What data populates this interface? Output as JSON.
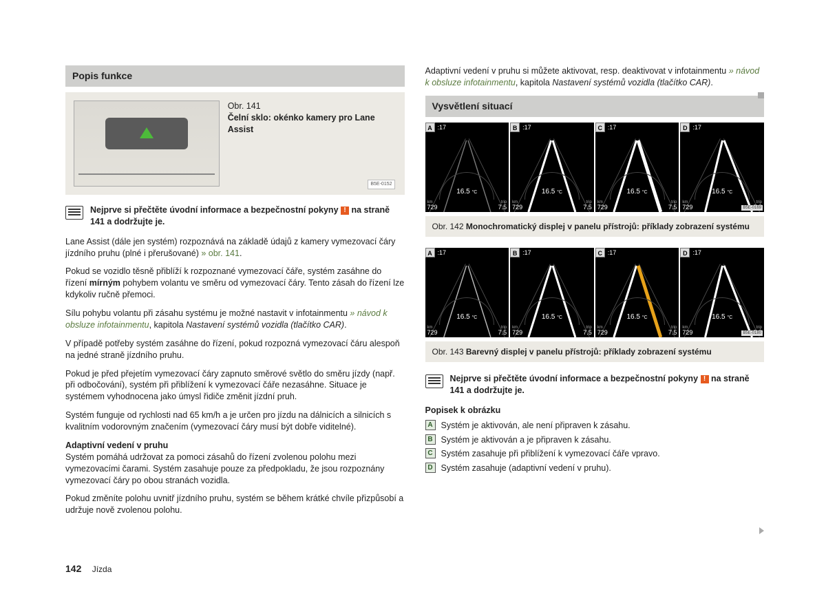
{
  "colors": {
    "headerBg": "#cfcfcd",
    "figBg": "#eceae4",
    "warn": "#e65a1f",
    "xref": "#5a7a3f",
    "laneMono": "#ffffff",
    "laneColorInactive": "#b8b8b8",
    "laneColorActive": "#e7a21a",
    "dispBg": "#000000"
  },
  "left": {
    "header": "Popis funkce",
    "fig141": {
      "obr": "Obr. 141",
      "title": "Čelní sklo: okénko kamery pro Lane Assist",
      "code": "B5E-0152"
    },
    "book": {
      "pre": "Nejprve si přečtěte úvodní informace a bezpečnostní pokyny",
      "post": "na straně 141 a dodržujte je."
    },
    "p1a": "Lane Assist (dále jen systém) rozpoznává na základě údajů z kamery vymezovací čáry jízdního pruhu (plné i přerušované) ",
    "p1x": "» obr. 141",
    "p1b": ".",
    "p2a": "Pokud se vozidlo těsně přiblíží k rozpoznané vymezovací čáře, systém zasáhne do řízení ",
    "p2bold": "mírným",
    "p2b": " pohybem volantu ve směru od vymezovací čáry. Tento zásah do řízení lze kdykoliv ručně přemoci.",
    "p3a": "Sílu pohybu volantu při zásahu systému je možné nastavit v infotainmentu ",
    "p3x": "» návod k obsluze infotainmentu",
    "p3b": ", kapitola ",
    "p3i": "Nastavení systémů vozidla (tlačítko CAR)",
    "p3c": ".",
    "p4": "V případě potřeby systém zasáhne do řízení, pokud rozpozná vymezovací čáru alespoň na jedné straně jízdního pruhu.",
    "p5": "Pokud je před přejetím vymezovací čáry zapnuto směrové světlo do směru jízdy (např. při odbočování), systém při přiblížení k vymezovací čáře nezasáhne. Situace je systémem vyhodnocena jako úmysl řidiče změnit jízdní pruh.",
    "p6": "Systém funguje od rychlosti nad 65 km/h a je určen pro jízdu na dálnicích a silnicích s kvalitním vodorovným značením (vymezovací čáry musí být dobře viditelné).",
    "sub": "Adaptivní vedení v pruhu",
    "p7": "Systém pomáhá udržovat za pomoci zásahů do řízení zvolenou polohu mezi vymezovacími čarami. Systém zasahuje pouze za předpokladu, že jsou rozpoznány vymezovací čáry po obou stranách vozidla.",
    "p8": "Pokud změníte polohu uvnitř jízdního pruhu, systém se během krátké chvíle přizpůsobí a udržuje nově zvolenou polohu."
  },
  "right": {
    "topA": "Adaptivní vedení v pruhu si můžete aktivovat, resp. deaktivovat v infotainmentu ",
    "topX": "» návod k obsluze infotainmentu",
    "topB": ", kapitola ",
    "topI": "Nastavení systémů vozidla (tlačítko CAR)",
    "topC": ".",
    "header": "Vysvětlení situací",
    "strip": {
      "labels": [
        "A",
        "B",
        "C",
        "D"
      ],
      "topNum": ":17",
      "temp": "16.5",
      "tempUnit": "°C",
      "kmLbl": "km",
      "tripLbl": "trip",
      "kmVal": "729",
      "tripVal": "7.5"
    },
    "strip1": {
      "code": "B5E-0169",
      "lanes": [
        {
          "left": "inactive",
          "right": "inactive",
          "accent": "mono"
        },
        {
          "left": "active",
          "right": "active",
          "accent": "mono"
        },
        {
          "left": "active",
          "right": "intervene",
          "accent": "mono"
        },
        {
          "left": "active",
          "right": "active",
          "accent": "mono",
          "shift": "right"
        }
      ]
    },
    "cap1a": "Obr. 142  ",
    "cap1b": "Monochromatický displej v panelu přístrojů: příklady zobrazení systému",
    "strip2": {
      "code": "B5E-0180",
      "lanes": [
        {
          "left": "inactive",
          "right": "inactive",
          "accent": "color"
        },
        {
          "left": "active",
          "right": "active",
          "accent": "color"
        },
        {
          "left": "active",
          "right": "intervene",
          "accent": "color"
        },
        {
          "left": "active",
          "right": "active",
          "accent": "color",
          "shift": "right"
        }
      ]
    },
    "cap2a": "Obr. 143  ",
    "cap2b": "Barevný displej v panelu přístrojů: příklady zobrazení systému",
    "book": {
      "pre": "Nejprve si přečtěte úvodní informace a bezpečnostní pokyny",
      "post": "na straně 141 a dodržujte je."
    },
    "legendTitle": "Popisek k obrázku",
    "legend": [
      {
        "k": "A",
        "t": "Systém je aktivován, ale není připraven k zásahu."
      },
      {
        "k": "B",
        "t": "Systém je aktivován a je připraven k zásahu."
      },
      {
        "k": "C",
        "t": "Systém zasahuje při přiblížení k vymezovací čáře vpravo."
      },
      {
        "k": "D",
        "t": "Systém zasahuje (adaptivní vedení v pruhu)."
      }
    ]
  },
  "footer": {
    "page": "142",
    "section": "Jízda"
  }
}
